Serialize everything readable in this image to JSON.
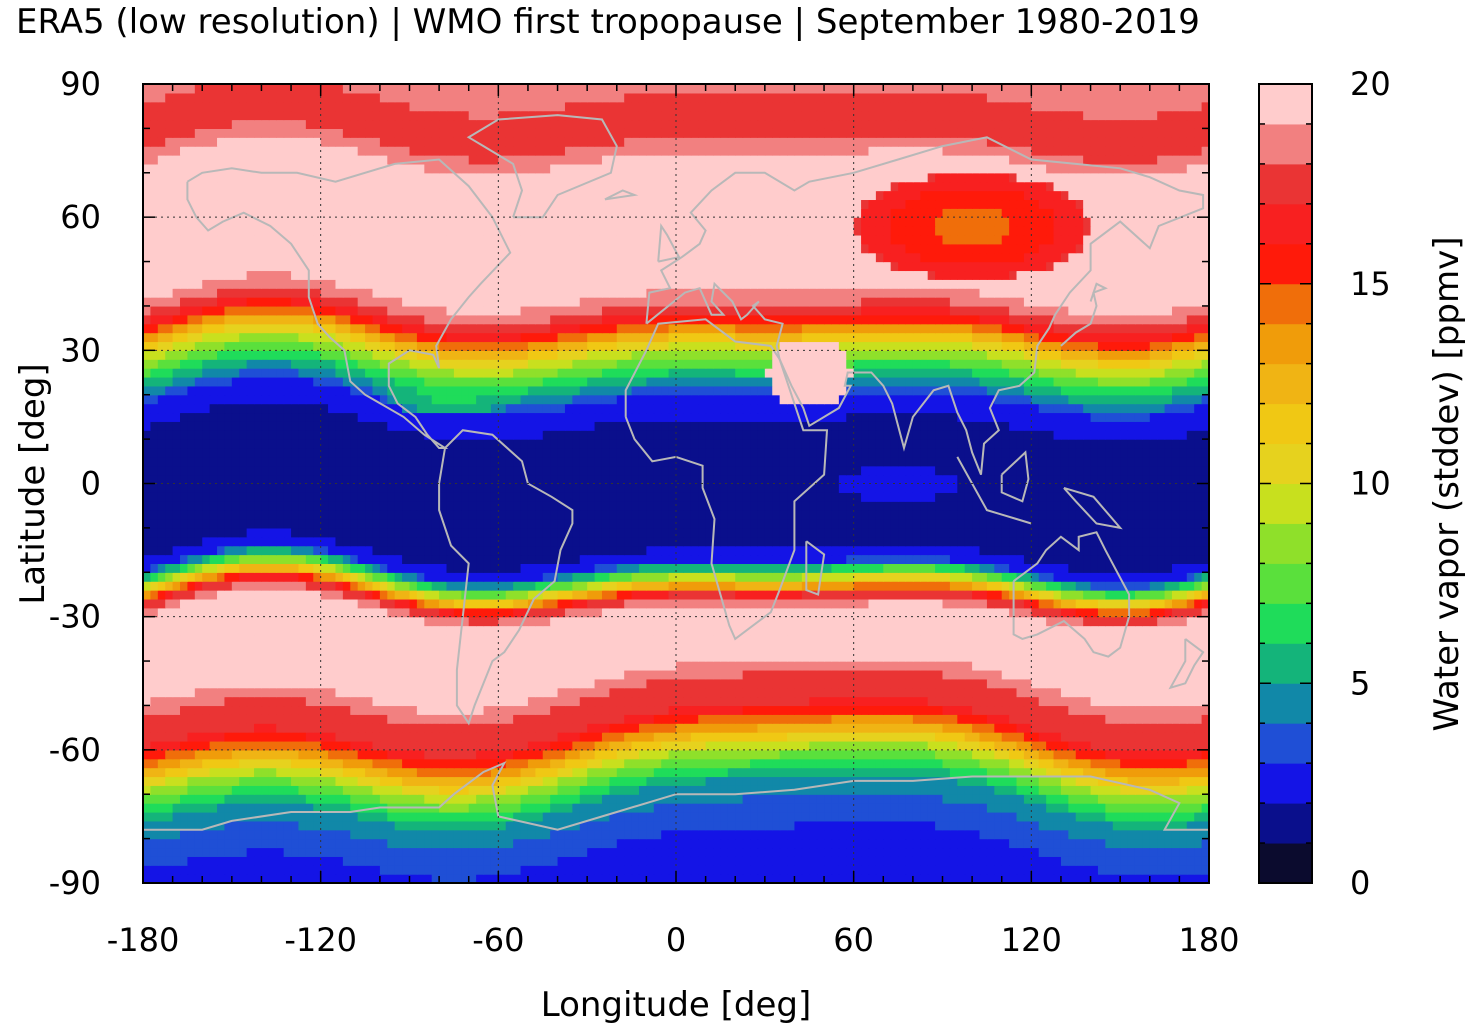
{
  "chart_data": {
    "type": "heatmap",
    "title": "ERA5 (low resolution) | WMO first tropopause | September 1980-2019",
    "xlabel": "Longitude [deg]",
    "ylabel": "Latitude [deg]",
    "colorbar_label": "Water vapor (stddev) [ppmv]",
    "xlim": [
      -180,
      180
    ],
    "ylim": [
      -90,
      90
    ],
    "x_ticks": [
      -180,
      -120,
      -60,
      0,
      60,
      120,
      180
    ],
    "y_ticks": [
      90,
      60,
      30,
      0,
      -30,
      -60,
      -90
    ],
    "x_tick_labels": [
      "-180",
      "-120",
      "-60",
      "0",
      "60",
      "120",
      "180"
    ],
    "y_tick_labels": [
      "90",
      "60",
      "30",
      "0",
      "-30",
      "-60",
      "-90"
    ],
    "colorbar_range": [
      0,
      20
    ],
    "colorbar_ticks": [
      0,
      5,
      10,
      15,
      20
    ],
    "colorbar_tick_labels": [
      "0",
      "5",
      "10",
      "15",
      "20"
    ],
    "grid": true,
    "coastlines": true,
    "palette": [
      "#0b0b2e",
      "#0a0f8c",
      "#1414e6",
      "#1f4fd6",
      "#1188a8",
      "#14b47a",
      "#1fdc5a",
      "#5ae03c",
      "#8fe02a",
      "#c8e01e",
      "#e6d21e",
      "#f0c814",
      "#f0b414",
      "#f09c0a",
      "#f06e0a",
      "#ff1a0a",
      "#f82020",
      "#ea3434",
      "#f28080",
      "#ffcccc"
    ],
    "zonal_profile": {
      "description_units": "latitude (deg) vs typical stddev (ppmv)",
      "lat": [
        -90,
        -80,
        -72,
        -65,
        -60,
        -55,
        -50,
        -42,
        -35,
        -30,
        -26,
        -22,
        -18,
        -10,
        0,
        10,
        18,
        24,
        30,
        35,
        38,
        45,
        60,
        70,
        80,
        90
      ],
      "value": [
        2.5,
        3.2,
        5.0,
        9.0,
        13.5,
        17.0,
        17.5,
        20.0,
        20.0,
        20.0,
        17.0,
        9.0,
        2.2,
        1.5,
        1.5,
        1.6,
        2.5,
        6.0,
        10.0,
        15.0,
        17.5,
        20.0,
        20.0,
        20.0,
        17.0,
        18.5
      ]
    }
  }
}
